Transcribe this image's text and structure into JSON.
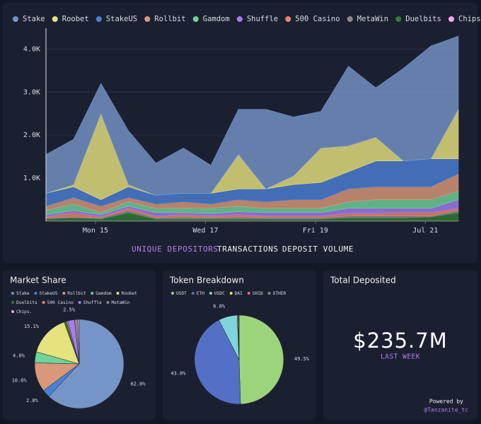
{
  "chart_data": [
    {
      "type": "area",
      "stacked": true,
      "x": [
        14.1,
        14.6,
        15.1,
        15.6,
        16.1,
        16.6,
        17.1,
        17.6,
        18.1,
        18.6,
        19.1,
        19.6,
        20.1,
        20.6,
        21.1,
        21.6
      ],
      "xlim": [
        14.1,
        21.6
      ],
      "xticks": [
        {
          "value": 15,
          "label": "Mon 15"
        },
        {
          "value": 17,
          "label": "Wed 17"
        },
        {
          "value": 19,
          "label": "Fri 19"
        },
        {
          "value": 21,
          "label": "Jul 21"
        }
      ],
      "ylim": [
        0,
        4400
      ],
      "yticks": [
        {
          "value": 1000,
          "label": "1.0K"
        },
        {
          "value": 2000,
          "label": "2.0K"
        },
        {
          "value": 3000,
          "label": "3.0K"
        },
        {
          "value": 4000,
          "label": "4.0K"
        }
      ],
      "grid": true,
      "series": [
        {
          "name": "Stake",
          "color": "#7595c8",
          "values": [
            900,
            1050,
            700,
            1250,
            750,
            1050,
            650,
            1050,
            1850,
            1370,
            850,
            1850,
            1150,
            2150,
            2620,
            1700
          ]
        },
        {
          "name": "Roobet",
          "color": "#e6e27e",
          "values": [
            0,
            50,
            2000,
            50,
            0,
            0,
            0,
            800,
            0,
            200,
            800,
            600,
            550,
            0,
            0,
            1150
          ]
        },
        {
          "name": "StakeUS",
          "color": "#4a80d4",
          "values": [
            300,
            250,
            150,
            250,
            200,
            200,
            250,
            250,
            300,
            350,
            400,
            400,
            600,
            600,
            650,
            350
          ]
        },
        {
          "name": "Rollbit",
          "color": "#d9987a",
          "values": [
            100,
            150,
            150,
            100,
            100,
            150,
            100,
            150,
            150,
            200,
            200,
            300,
            300,
            300,
            300,
            400
          ]
        },
        {
          "name": "Gamdom",
          "color": "#6fd39a",
          "values": [
            100,
            150,
            50,
            100,
            100,
            100,
            120,
            130,
            100,
            100,
            100,
            150,
            200,
            200,
            200,
            200
          ]
        },
        {
          "name": "Shuffle",
          "color": "#a67cf2",
          "values": [
            50,
            50,
            50,
            50,
            80,
            50,
            60,
            70,
            80,
            80,
            80,
            120,
            120,
            100,
            100,
            200
          ]
        },
        {
          "name": "500 Casino",
          "color": "#ec8570",
          "values": [
            20,
            100,
            20,
            50,
            40,
            50,
            40,
            50,
            40,
            40,
            40,
            60,
            60,
            80,
            80,
            50
          ]
        },
        {
          "name": "MetaWin",
          "color": "#8a8a8a",
          "values": [
            30,
            20,
            30,
            50,
            30,
            50,
            30,
            50,
            30,
            30,
            30,
            40,
            40,
            40,
            20,
            50
          ]
        },
        {
          "name": "Duelbits",
          "color": "#2e7d32",
          "values": [
            40,
            70,
            40,
            190,
            40,
            40,
            40,
            40,
            40,
            40,
            40,
            70,
            70,
            70,
            90,
            190
          ]
        },
        {
          "name": "Chips.gg",
          "color": "#f1a6ee",
          "values": [
            10,
            10,
            10,
            10,
            10,
            10,
            10,
            10,
            10,
            10,
            10,
            10,
            10,
            10,
            10,
            10
          ]
        }
      ]
    },
    {
      "type": "pie",
      "title": "Market Share",
      "categories": [
        "Stake",
        "StakeUS",
        "Rollbit",
        "Gamdom",
        "Roobet",
        "Duelbits",
        "500 Casino",
        "Shuffle",
        "MetaWin",
        "Chips."
      ],
      "values": [
        62.0,
        2.8,
        10.6,
        4.0,
        15.1,
        0.8,
        0.5,
        2.5,
        1.2,
        0.5
      ],
      "value_labels": [
        "62.0%",
        "2.8%",
        "10.6%",
        "4.0%",
        "15.1%",
        null,
        null,
        "2.5%",
        null,
        null
      ],
      "colors": [
        "#7595c8",
        "#4a80d4",
        "#d9987a",
        "#6fd39a",
        "#e6e27e",
        "#2e7d32",
        "#ec8570",
        "#a67cf2",
        "#8a8a8a",
        "#f1a6ee"
      ]
    },
    {
      "type": "pie",
      "title": "Token Breakdown",
      "categories": [
        "USDT",
        "ETH",
        "USDC",
        "DAI",
        "SHIB",
        "OTHER"
      ],
      "values": [
        49.5,
        43.0,
        6.8,
        0.3,
        0.2,
        0.2
      ],
      "value_labels": [
        "49.5%",
        "43.0%",
        "6.8%",
        null,
        null,
        null
      ],
      "colors": [
        "#9bd47a",
        "#5470c6",
        "#80d4dc",
        "#f2d96b",
        "#e8706a",
        "#8a8a8a"
      ]
    }
  ],
  "tabs": [
    "UNIQUE DEPOSITORS",
    "TRANSACTIONS",
    "DEPOSIT VOLUME"
  ],
  "total": {
    "title": "Total Deposited",
    "value": "$235.7M",
    "period": "LAST WEEK"
  },
  "footer": {
    "powered": "Powered by",
    "handle": "@Tanzanite_tc"
  }
}
